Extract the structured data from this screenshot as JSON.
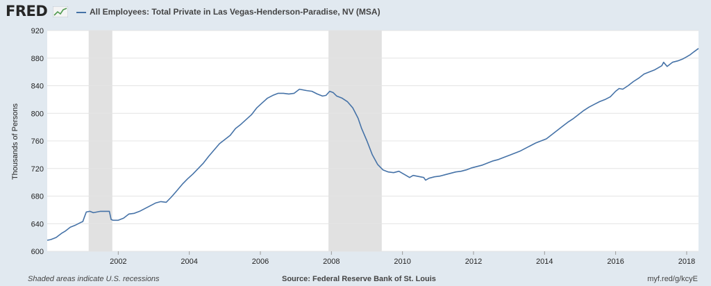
{
  "header": {
    "logo_text": "FRED",
    "legend_label": "All Employees: Total Private in Las Vegas-Henderson-Paradise, NV (MSA)"
  },
  "footer": {
    "recession_note": "Shaded areas indicate U.S. recessions",
    "source": "Source: Federal Reserve Bank of St. Louis",
    "url": "myf.red/g/kcyE"
  },
  "colors": {
    "series": "#4572a7",
    "recession": "#e1e1e1",
    "grid": "#e4e4e4",
    "background": "#e1e9f0"
  },
  "chart_data": {
    "type": "line",
    "title": "",
    "xlabel": "",
    "ylabel": "Thousands of Persons",
    "xlim": [
      2000.0,
      2018.333
    ],
    "ylim": [
      600,
      920
    ],
    "yticks": [
      600,
      640,
      680,
      720,
      760,
      800,
      840,
      880,
      920
    ],
    "xticks": [
      2002,
      2004,
      2006,
      2008,
      2010,
      2012,
      2014,
      2016,
      2018
    ],
    "grid": "horizontal",
    "recessions": [
      [
        2001.167,
        2001.833
      ],
      [
        2007.917,
        2009.417
      ]
    ],
    "series": [
      {
        "name": "All Employees: Total Private in Las Vegas-Henderson-Paradise, NV (MSA)",
        "x": [
          2000.0,
          2000.1,
          2000.25,
          2000.4,
          2000.5,
          2000.65,
          2000.8,
          2000.95,
          2001.0,
          2001.05,
          2001.1,
          2001.2,
          2001.3,
          2001.4,
          2001.5,
          2001.65,
          2001.75,
          2001.8,
          2001.85,
          2002.0,
          2002.15,
          2002.3,
          2002.45,
          2002.6,
          2002.75,
          2002.9,
          2003.05,
          2003.2,
          2003.35,
          2003.5,
          2003.65,
          2003.8,
          2003.95,
          2004.1,
          2004.25,
          2004.4,
          2004.55,
          2004.7,
          2004.85,
          2005.0,
          2005.15,
          2005.3,
          2005.45,
          2005.6,
          2005.75,
          2005.9,
          2006.05,
          2006.2,
          2006.35,
          2006.5,
          2006.65,
          2006.8,
          2006.95,
          2007.1,
          2007.2,
          2007.3,
          2007.45,
          2007.6,
          2007.75,
          2007.85,
          2007.95,
          2008.05,
          2008.15,
          2008.3,
          2008.45,
          2008.6,
          2008.75,
          2008.85,
          2009.0,
          2009.15,
          2009.3,
          2009.45,
          2009.6,
          2009.75,
          2009.9,
          2010.0,
          2010.1,
          2010.2,
          2010.3,
          2010.4,
          2010.5,
          2010.6,
          2010.65,
          2010.75,
          2010.9,
          2011.05,
          2011.2,
          2011.35,
          2011.5,
          2011.65,
          2011.8,
          2011.95,
          2012.1,
          2012.25,
          2012.4,
          2012.55,
          2012.7,
          2012.85,
          2013.0,
          2013.15,
          2013.3,
          2013.45,
          2013.6,
          2013.75,
          2013.9,
          2014.05,
          2014.2,
          2014.35,
          2014.5,
          2014.65,
          2014.8,
          2014.95,
          2015.1,
          2015.25,
          2015.4,
          2015.55,
          2015.7,
          2015.85,
          2016.0,
          2016.1,
          2016.2,
          2016.35,
          2016.5,
          2016.65,
          2016.8,
          2016.95,
          2017.1,
          2017.2,
          2017.3,
          2017.35,
          2017.45,
          2017.6,
          2017.75,
          2017.9,
          2018.0,
          2018.1,
          2018.2,
          2018.333
        ],
        "values": [
          616,
          617,
          620,
          626,
          629,
          635,
          638,
          642,
          643,
          650,
          657,
          658,
          656,
          657,
          658,
          658,
          658,
          646,
          645,
          645,
          648,
          654,
          655,
          658,
          662,
          666,
          670,
          672,
          671,
          679,
          688,
          697,
          705,
          712,
          720,
          728,
          738,
          747,
          756,
          762,
          768,
          778,
          784,
          791,
          798,
          808,
          815,
          822,
          826,
          829,
          829,
          828,
          829,
          835,
          834,
          833,
          832,
          828,
          825,
          826,
          832,
          830,
          825,
          822,
          817,
          808,
          793,
          778,
          760,
          740,
          726,
          718,
          715,
          714,
          716,
          713,
          710,
          707,
          710,
          709,
          708,
          707,
          703,
          706,
          708,
          709,
          711,
          713,
          715,
          716,
          718,
          721,
          723,
          725,
          728,
          731,
          733,
          736,
          739,
          742,
          745,
          749,
          753,
          757,
          760,
          763,
          769,
          775,
          781,
          787,
          792,
          798,
          804,
          809,
          813,
          817,
          820,
          824,
          832,
          836,
          835,
          840,
          846,
          851,
          857,
          860,
          863,
          866,
          869,
          874,
          868,
          874,
          876,
          879,
          882,
          885,
          889,
          894
        ]
      }
    ]
  }
}
